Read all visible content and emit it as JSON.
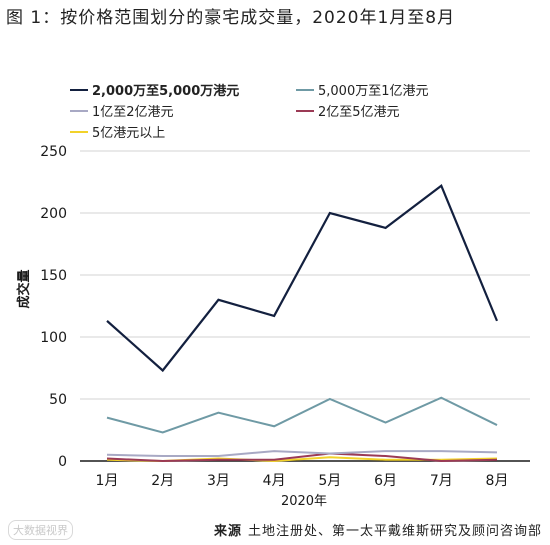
{
  "title": "图 1：按价格范围划分的豪宅成交量，2020年1月至8月",
  "source": {
    "label": "来源",
    "text": "土地注册处、第一太平戴维斯研究及顾问咨询部"
  },
  "watermark": "大数据视界",
  "chart_data": {
    "type": "line",
    "ylabel": "成交量",
    "xlabel": "2020年",
    "ylim": [
      0,
      250
    ],
    "yticks": [
      0,
      50,
      100,
      150,
      200,
      250
    ],
    "categories": [
      "1月",
      "2月",
      "3月",
      "4月",
      "5月",
      "6月",
      "7月",
      "8月"
    ],
    "grid": "horizontal",
    "legend_position": "top",
    "series": [
      {
        "name": "2,000万至5,000万港元",
        "color": "#13203f",
        "width": 2.2,
        "bold": true,
        "values": [
          113,
          73,
          130,
          117,
          200,
          188,
          222,
          113
        ]
      },
      {
        "name": "5,000万至1亿港元",
        "color": "#6f9aa5",
        "width": 2,
        "bold": false,
        "values": [
          35,
          23,
          39,
          28,
          50,
          31,
          51,
          29
        ]
      },
      {
        "name": "1亿至2亿港元",
        "color": "#a8a9c4",
        "width": 2,
        "bold": false,
        "values": [
          5,
          4,
          4,
          8,
          6,
          8,
          8,
          7
        ]
      },
      {
        "name": "2亿至5亿港元",
        "color": "#9b3a55",
        "width": 2,
        "bold": false,
        "values": [
          2,
          0,
          1,
          1,
          6,
          4,
          0,
          1
        ]
      },
      {
        "name": "5亿港元以上",
        "color": "#f2d22a",
        "width": 2,
        "bold": false,
        "values": [
          1,
          0,
          2,
          0,
          3,
          1,
          1,
          2
        ]
      }
    ]
  }
}
